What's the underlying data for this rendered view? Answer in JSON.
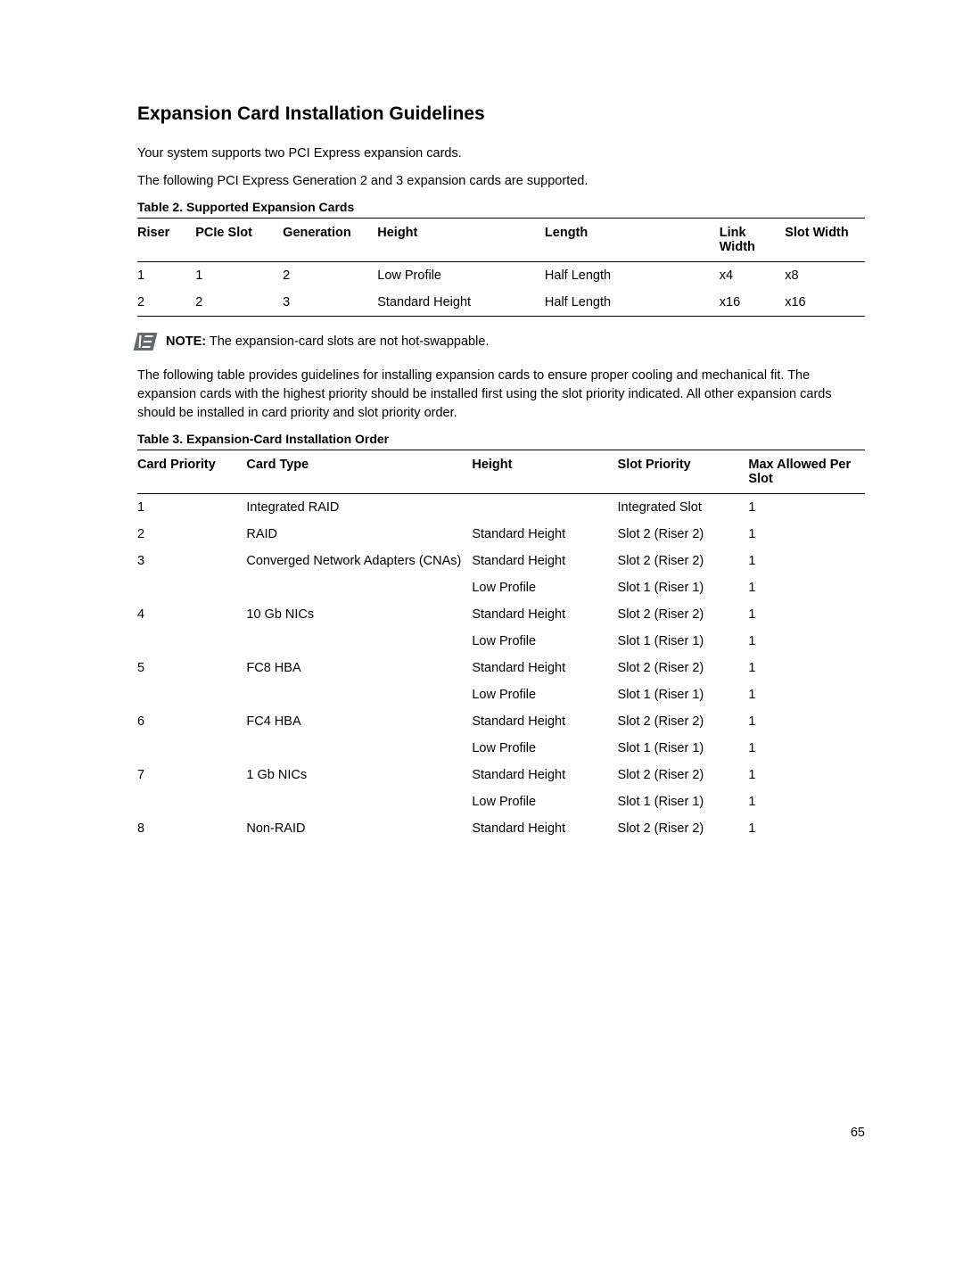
{
  "heading": "Expansion Card Installation Guidelines",
  "intro1": "Your system supports two PCI Express expansion cards.",
  "intro2": "The following PCI Express Generation 2 and 3 expansion cards are supported.",
  "table1": {
    "title": "Table 2. Supported Expansion Cards",
    "headers": [
      "Riser",
      "PCIe Slot",
      "Generation",
      "Height",
      "Length",
      "Link Width",
      "Slot Width"
    ],
    "rows": [
      [
        "1",
        "1",
        "2",
        "Low Profile",
        "Half Length",
        "x4",
        "x8"
      ],
      [
        "2",
        "2",
        "3",
        "Standard Height",
        "Half Length",
        "x16",
        "x16"
      ]
    ]
  },
  "note": {
    "label": "NOTE:",
    "text": " The expansion-card slots are not hot-swappable."
  },
  "para3": "The following table provides guidelines for installing expansion cards to ensure proper cooling and mechanical fit. The expansion cards with the highest priority should be installed first using the slot priority indicated. All other expansion cards should be installed in card priority and slot priority order.",
  "table2": {
    "title": "Table 3. Expansion-Card Installation Order",
    "headers": [
      "Card Priority",
      "Card Type",
      "Height",
      "Slot Priority",
      "Max Allowed Per Slot"
    ],
    "rows": [
      [
        "1",
        "Integrated RAID",
        "",
        "Integrated Slot",
        "1"
      ],
      [
        "2",
        "RAID",
        "Standard Height",
        "Slot 2 (Riser 2)",
        "1"
      ],
      [
        "3",
        "Converged Network Adapters (CNAs)",
        "Standard Height",
        "Slot 2 (Riser 2)",
        "1"
      ],
      [
        "",
        "",
        "Low Profile",
        "Slot 1 (Riser 1)",
        "1"
      ],
      [
        "4",
        "10 Gb NICs",
        "Standard Height",
        "Slot 2 (Riser 2)",
        "1"
      ],
      [
        "",
        "",
        "Low Profile",
        "Slot 1 (Riser 1)",
        "1"
      ],
      [
        "5",
        "FC8 HBA",
        "Standard Height",
        "Slot 2 (Riser 2)",
        "1"
      ],
      [
        "",
        "",
        "Low Profile",
        "Slot 1 (Riser 1)",
        "1"
      ],
      [
        "6",
        "FC4 HBA",
        "Standard Height",
        "Slot 2 (Riser 2)",
        "1"
      ],
      [
        "",
        "",
        "Low Profile",
        "Slot 1 (Riser 1)",
        "1"
      ],
      [
        "7",
        "1 Gb NICs",
        "Standard Height",
        "Slot 2 (Riser 2)",
        "1"
      ],
      [
        "",
        "",
        "Low Profile",
        "Slot 1 (Riser 1)",
        "1"
      ],
      [
        "8",
        "Non-RAID",
        "Standard Height",
        "Slot 2 (Riser 2)",
        "1"
      ]
    ]
  },
  "page_number": "65"
}
